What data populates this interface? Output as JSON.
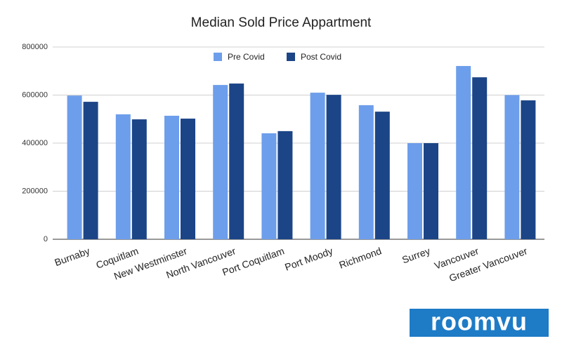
{
  "chart_data": {
    "type": "bar",
    "title": "Median Sold Price Appartment",
    "categories": [
      "Burnaby",
      "Coquitlam",
      "New Westminster",
      "North Vancouver",
      "Port Coquitlam",
      "Port Moody",
      "Richmond",
      "Surrey",
      "Vancouver",
      "Greater Vancouver"
    ],
    "series": [
      {
        "name": "Pre Covid",
        "color": "#6d9eeb",
        "values": [
          598000,
          520000,
          514000,
          642000,
          441000,
          610000,
          558000,
          400000,
          721000,
          600000
        ]
      },
      {
        "name": "Post Covid",
        "color": "#1c4587",
        "values": [
          572000,
          499000,
          502000,
          648000,
          450000,
          601000,
          531000,
          400000,
          674000,
          578000
        ]
      }
    ],
    "ylim": [
      0,
      800000
    ],
    "yticks": [
      0,
      200000,
      400000,
      600000,
      800000
    ],
    "grid": true,
    "legend": "top"
  },
  "logo": "roomvu"
}
